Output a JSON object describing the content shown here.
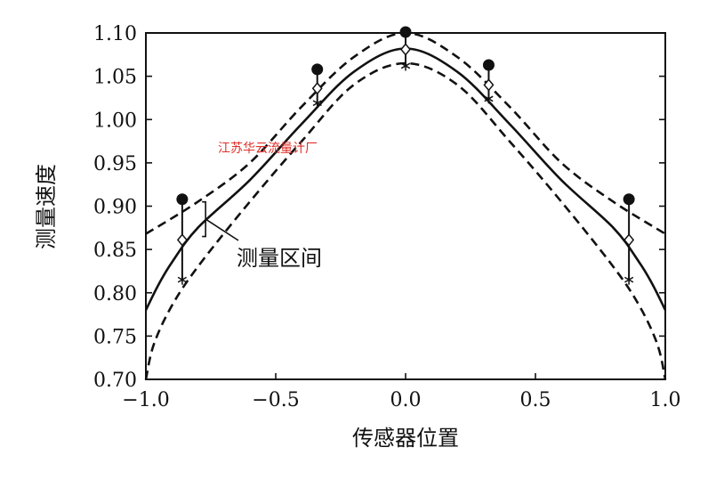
{
  "chart_data": {
    "type": "line",
    "xlabel": "传感器位置",
    "ylabel": "测量速度",
    "xlim": [
      -1.0,
      1.0
    ],
    "ylim": [
      0.7,
      1.1
    ],
    "x_ticks": [
      "−1.0",
      "−0.5",
      "0.0",
      "0.5",
      "1.0"
    ],
    "x_tick_values": [
      -1.0,
      -0.5,
      0.0,
      0.5,
      1.0
    ],
    "y_ticks": [
      "0.70",
      "0.75",
      "0.80",
      "0.85",
      "0.90",
      "0.95",
      "1.00",
      "1.05",
      "1.10"
    ],
    "y_tick_values": [
      0.7,
      0.75,
      0.8,
      0.85,
      0.9,
      0.95,
      1.0,
      1.05,
      1.1
    ],
    "grid": false,
    "curves": [
      {
        "style": "dashed",
        "x": [
          -1.0,
          -0.8,
          -0.6,
          -0.4,
          -0.2,
          0.0,
          0.2,
          0.4,
          0.6,
          0.8,
          1.0
        ],
        "y": [
          0.868,
          0.905,
          0.95,
          1.015,
          1.072,
          1.1,
          1.072,
          1.015,
          0.95,
          0.905,
          0.868
        ]
      },
      {
        "style": "solid",
        "x": [
          -1.0,
          -0.95,
          -0.9,
          -0.8,
          -0.6,
          -0.4,
          -0.2,
          0.0,
          0.2,
          0.4,
          0.6,
          0.8,
          0.9,
          0.95,
          1.0
        ],
        "y": [
          0.78,
          0.81,
          0.835,
          0.875,
          0.93,
          0.995,
          1.055,
          1.082,
          1.055,
          0.995,
          0.93,
          0.875,
          0.835,
          0.81,
          0.78
        ]
      },
      {
        "style": "dashed",
        "x": [
          -1.0,
          -0.97,
          -0.9,
          -0.8,
          -0.6,
          -0.4,
          -0.2,
          0.0,
          0.2,
          0.4,
          0.6,
          0.8,
          0.9,
          0.97,
          1.0
        ],
        "y": [
          0.7,
          0.74,
          0.785,
          0.83,
          0.905,
          0.975,
          1.04,
          1.065,
          1.04,
          0.975,
          0.905,
          0.83,
          0.785,
          0.74,
          0.7
        ]
      }
    ],
    "points": {
      "x": [
        -0.86,
        -0.34,
        0.0,
        0.32,
        0.86
      ],
      "max_dot": [
        0.908,
        1.058,
        1.101,
        1.063,
        0.908
      ],
      "mid_diamond": [
        0.861,
        1.036,
        1.081,
        1.04,
        0.861
      ],
      "min_star": [
        0.815,
        1.019,
        1.062,
        1.024,
        0.815
      ]
    },
    "bracket": {
      "x": -0.77,
      "y_top": 0.905,
      "y_bottom": 0.865
    },
    "annotation": "测量区间",
    "watermark": "江苏华云流量计厂"
  }
}
